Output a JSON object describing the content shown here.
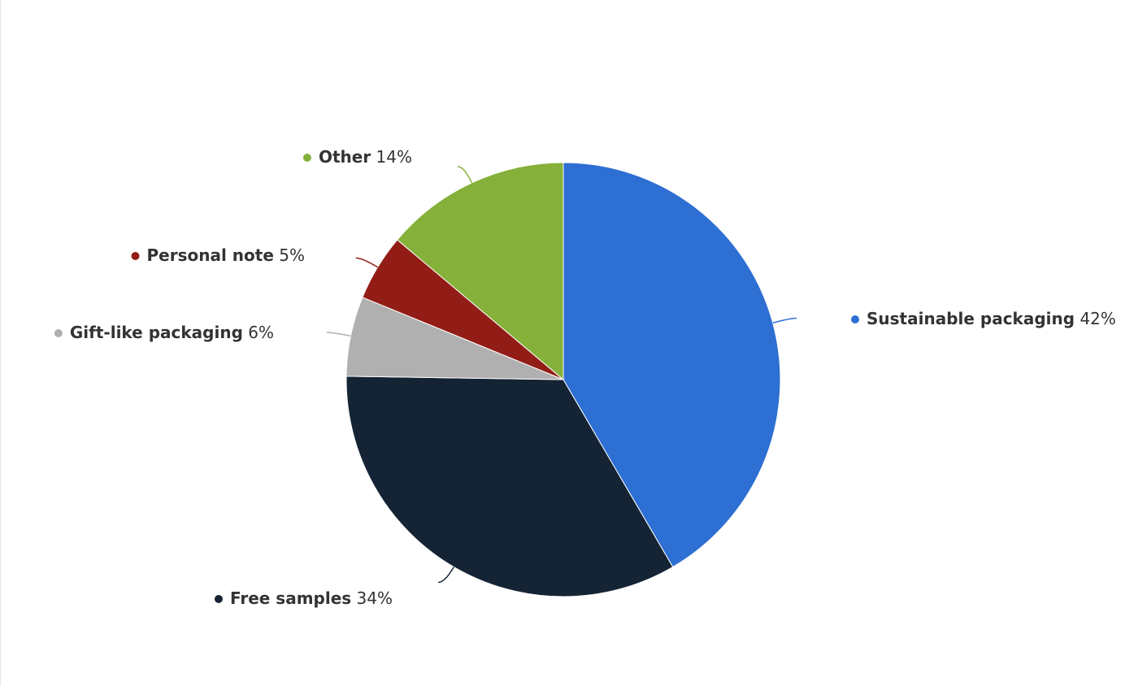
{
  "chart_data": {
    "type": "pie",
    "categories": [
      "Sustainable packaging",
      "Free samples",
      "Gift-like packaging",
      "Personal note",
      "Other"
    ],
    "values": [
      42,
      34,
      6,
      5,
      14
    ],
    "value_labels": [
      "42%",
      "34%",
      "6%",
      "5%",
      "14%"
    ],
    "colors": [
      "#2d6fd2",
      "#152435",
      "#b0b0b0",
      "#921d16",
      "#85b03a"
    ]
  }
}
